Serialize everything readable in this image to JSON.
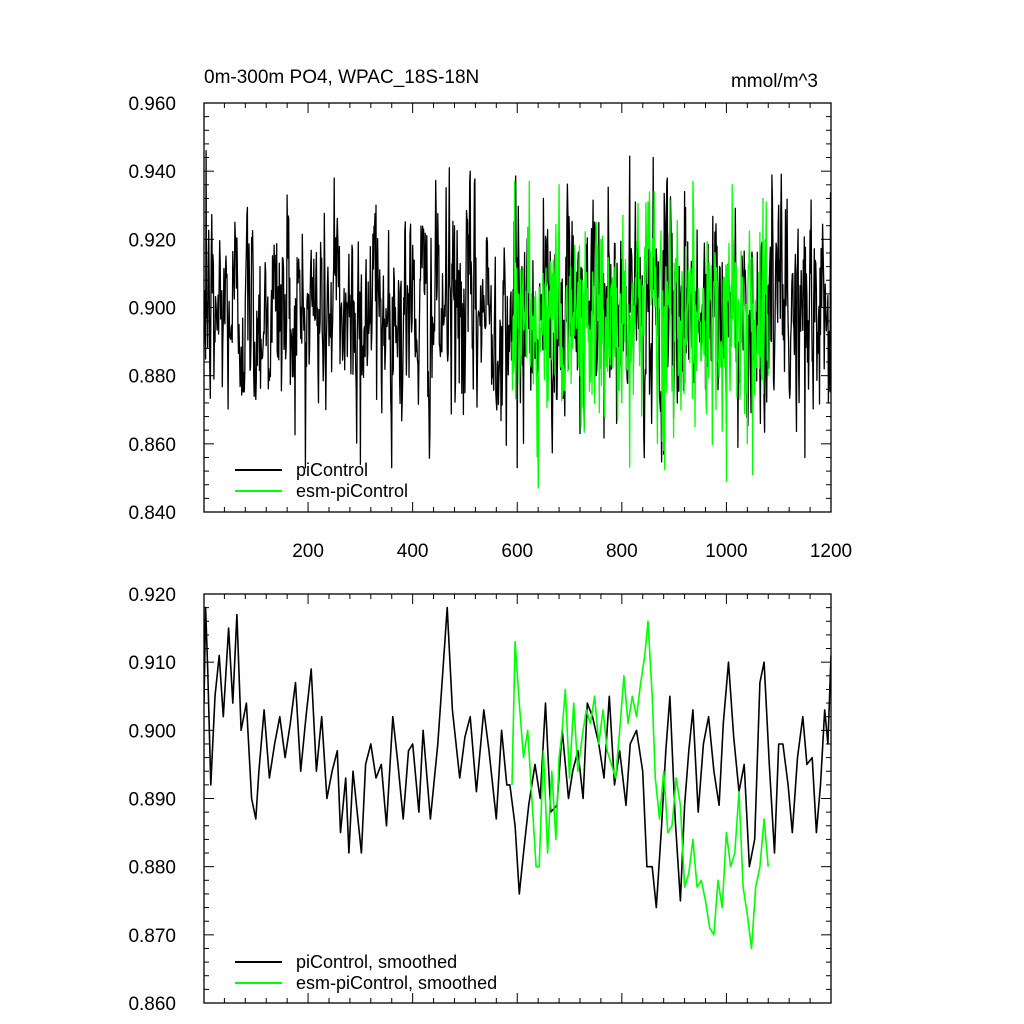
{
  "chart_data": [
    {
      "type": "line",
      "title": "0m-300m PO4, WPAC_18S-18N",
      "units": "mmol/m^3",
      "xlim": [
        1,
        1200
      ],
      "ylim": [
        0.84,
        0.96
      ],
      "xticks": [
        200,
        400,
        600,
        800,
        1000,
        1200
      ],
      "xtick_labels": [
        "200",
        "400",
        "600",
        "800",
        "1000",
        "1200"
      ],
      "yticks": [
        0.84,
        0.86,
        0.88,
        0.9,
        0.92,
        0.94,
        0.96
      ],
      "ytick_labels": [
        "0.840",
        "0.860",
        "0.880",
        "0.900",
        "0.920",
        "0.940",
        "0.960"
      ],
      "legend_placement": "bottom-left",
      "series": [
        {
          "name": "piControl",
          "color": "#000000",
          "x_range": [
            1,
            1200
          ],
          "x_step": 1,
          "approximate_mean": 0.899,
          "approximate_range": [
            0.853,
            0.946
          ],
          "representative_points": [
            [
              1,
              0.889
            ],
            [
              5,
              0.946
            ],
            [
              20,
              0.879
            ],
            [
              60,
              0.925
            ],
            [
              100,
              0.873
            ],
            [
              160,
              0.933
            ],
            [
              220,
              0.872
            ],
            [
              250,
              0.938
            ],
            [
              300,
              0.854
            ],
            [
              330,
              0.93
            ],
            [
              380,
              0.872
            ],
            [
              470,
              0.941
            ],
            [
              500,
              0.875
            ],
            [
              510,
              0.94
            ],
            [
              560,
              0.872
            ],
            [
              600,
              0.853
            ],
            [
              650,
              0.932
            ],
            [
              720,
              0.863
            ],
            [
              790,
              0.866
            ],
            [
              860,
              0.944
            ],
            [
              880,
              0.857
            ],
            [
              920,
              0.934
            ],
            [
              960,
              0.876
            ],
            [
              1000,
              0.866
            ],
            [
              1050,
              0.913
            ],
            [
              1100,
              0.93
            ],
            [
              1150,
              0.856
            ],
            [
              1195,
              0.872
            ],
            [
              1200,
              0.93
            ]
          ]
        },
        {
          "name": "esm-piControl",
          "color": "#00ff00",
          "x_range": [
            590,
            1080
          ],
          "x_step": 1,
          "approximate_mean": 0.895,
          "approximate_range": [
            0.847,
            0.937
          ],
          "representative_points": [
            [
              590,
              0.89
            ],
            [
              595,
              0.937
            ],
            [
              640,
              0.847
            ],
            [
              680,
              0.936
            ],
            [
              720,
              0.88
            ],
            [
              760,
              0.92
            ],
            [
              800,
              0.872
            ],
            [
              850,
              0.931
            ],
            [
              880,
              0.858
            ],
            [
              900,
              0.913
            ],
            [
              940,
              0.865
            ],
            [
              980,
              0.87
            ],
            [
              1000,
              0.849
            ],
            [
              1040,
              0.86
            ],
            [
              1050,
              0.851
            ],
            [
              1070,
              0.932
            ],
            [
              1080,
              0.88
            ]
          ]
        }
      ]
    },
    {
      "type": "line",
      "title": "",
      "xlim": [
        1,
        1200
      ],
      "ylim": [
        0.86,
        0.92
      ],
      "xticks": [
        200,
        400,
        600,
        800,
        1000,
        1200
      ],
      "yticks": [
        0.86,
        0.87,
        0.88,
        0.89,
        0.9,
        0.91,
        0.92
      ],
      "ytick_labels": [
        "0.860",
        "0.870",
        "0.880",
        "0.890",
        "0.900",
        "0.910",
        "0.920"
      ],
      "legend_placement": "bottom-left",
      "series": [
        {
          "name": "piControl, smoothed",
          "color": "#000000",
          "points": [
            [
              1,
              0.904
            ],
            [
              4,
              0.918
            ],
            [
              8,
              0.909
            ],
            [
              14,
              0.892
            ],
            [
              22,
              0.905
            ],
            [
              30,
              0.911
            ],
            [
              38,
              0.902
            ],
            [
              48,
              0.915
            ],
            [
              56,
              0.904
            ],
            [
              64,
              0.917
            ],
            [
              72,
              0.9
            ],
            [
              82,
              0.904
            ],
            [
              92,
              0.89
            ],
            [
              100,
              0.887
            ],
            [
              106,
              0.894
            ],
            [
              116,
              0.903
            ],
            [
              126,
              0.893
            ],
            [
              136,
              0.898
            ],
            [
              146,
              0.902
            ],
            [
              156,
              0.896
            ],
            [
              166,
              0.901
            ],
            [
              176,
              0.907
            ],
            [
              186,
              0.894
            ],
            [
              196,
              0.902
            ],
            [
              206,
              0.909
            ],
            [
              216,
              0.894
            ],
            [
              226,
              0.902
            ],
            [
              236,
              0.89
            ],
            [
              246,
              0.894
            ],
            [
              256,
              0.897
            ],
            [
              262,
              0.885
            ],
            [
              272,
              0.893
            ],
            [
              278,
              0.882
            ],
            [
              286,
              0.894
            ],
            [
              294,
              0.888
            ],
            [
              302,
              0.882
            ],
            [
              310,
              0.895
            ],
            [
              320,
              0.898
            ],
            [
              330,
              0.893
            ],
            [
              340,
              0.895
            ],
            [
              350,
              0.886
            ],
            [
              362,
              0.902
            ],
            [
              372,
              0.895
            ],
            [
              382,
              0.887
            ],
            [
              392,
              0.897
            ],
            [
              400,
              0.898
            ],
            [
              412,
              0.888
            ],
            [
              420,
              0.9
            ],
            [
              434,
              0.887
            ],
            [
              448,
              0.898
            ],
            [
              458,
              0.909
            ],
            [
              466,
              0.918
            ],
            [
              476,
              0.903
            ],
            [
              490,
              0.893
            ],
            [
              500,
              0.899
            ],
            [
              510,
              0.902
            ],
            [
              522,
              0.891
            ],
            [
              536,
              0.903
            ],
            [
              546,
              0.897
            ],
            [
              560,
              0.887
            ],
            [
              570,
              0.9
            ],
            [
              580,
              0.892
            ],
            [
              586,
              0.892
            ],
            [
              596,
              0.886
            ],
            [
              604,
              0.876
            ],
            [
              612,
              0.882
            ],
            [
              622,
              0.889
            ],
            [
              634,
              0.895
            ],
            [
              644,
              0.89
            ],
            [
              654,
              0.904
            ],
            [
              664,
              0.888
            ],
            [
              676,
              0.889
            ],
            [
              686,
              0.9
            ],
            [
              698,
              0.89
            ],
            [
              706,
              0.894
            ],
            [
              716,
              0.897
            ],
            [
              726,
              0.89
            ],
            [
              734,
              0.904
            ],
            [
              744,
              0.902
            ],
            [
              756,
              0.898
            ],
            [
              766,
              0.893
            ],
            [
              776,
              0.905
            ],
            [
              786,
              0.892
            ],
            [
              796,
              0.897
            ],
            [
              808,
              0.889
            ],
            [
              816,
              0.898
            ],
            [
              828,
              0.9
            ],
            [
              840,
              0.894
            ],
            [
              848,
              0.88
            ],
            [
              858,
              0.88
            ],
            [
              866,
              0.874
            ],
            [
              876,
              0.886
            ],
            [
              884,
              0.897
            ],
            [
              892,
              0.905
            ],
            [
              902,
              0.887
            ],
            [
              912,
              0.875
            ],
            [
              920,
              0.889
            ],
            [
              928,
              0.897
            ],
            [
              936,
              0.903
            ],
            [
              946,
              0.888
            ],
            [
              956,
              0.898
            ],
            [
              966,
              0.902
            ],
            [
              976,
              0.894
            ],
            [
              986,
              0.889
            ],
            [
              994,
              0.901
            ],
            [
              1004,
              0.91
            ],
            [
              1014,
              0.899
            ],
            [
              1024,
              0.891
            ],
            [
              1034,
              0.895
            ],
            [
              1044,
              0.88
            ],
            [
              1054,
              0.884
            ],
            [
              1064,
              0.907
            ],
            [
              1072,
              0.91
            ],
            [
              1082,
              0.895
            ],
            [
              1092,
              0.882
            ],
            [
              1100,
              0.898
            ],
            [
              1108,
              0.898
            ],
            [
              1118,
              0.892
            ],
            [
              1126,
              0.885
            ],
            [
              1136,
              0.896
            ],
            [
              1146,
              0.902
            ],
            [
              1154,
              0.895
            ],
            [
              1164,
              0.896
            ],
            [
              1172,
              0.885
            ],
            [
              1180,
              0.892
            ],
            [
              1188,
              0.903
            ],
            [
              1194,
              0.898
            ],
            [
              1200,
              0.911
            ]
          ]
        },
        {
          "name": "esm-piControl, smoothed",
          "color": "#00ff00",
          "points": [
            [
              590,
              0.892
            ],
            [
              596,
              0.913
            ],
            [
              604,
              0.904
            ],
            [
              612,
              0.896
            ],
            [
              620,
              0.9
            ],
            [
              628,
              0.89
            ],
            [
              636,
              0.88
            ],
            [
              642,
              0.88
            ],
            [
              650,
              0.897
            ],
            [
              658,
              0.882
            ],
            [
              666,
              0.894
            ],
            [
              674,
              0.884
            ],
            [
              680,
              0.896
            ],
            [
              686,
              0.9
            ],
            [
              692,
              0.906
            ],
            [
              700,
              0.893
            ],
            [
              708,
              0.904
            ],
            [
              716,
              0.894
            ],
            [
              724,
              0.899
            ],
            [
              732,
              0.903
            ],
            [
              740,
              0.901
            ],
            [
              748,
              0.905
            ],
            [
              756,
              0.898
            ],
            [
              764,
              0.903
            ],
            [
              772,
              0.897
            ],
            [
              780,
              0.895
            ],
            [
              788,
              0.893
            ],
            [
              796,
              0.9
            ],
            [
              804,
              0.908
            ],
            [
              812,
              0.901
            ],
            [
              820,
              0.905
            ],
            [
              828,
              0.902
            ],
            [
              836,
              0.907
            ],
            [
              844,
              0.911
            ],
            [
              850,
              0.916
            ],
            [
              858,
              0.905
            ],
            [
              864,
              0.893
            ],
            [
              872,
              0.887
            ],
            [
              880,
              0.894
            ],
            [
              888,
              0.885
            ],
            [
              896,
              0.886
            ],
            [
              904,
              0.893
            ],
            [
              912,
              0.889
            ],
            [
              920,
              0.877
            ],
            [
              928,
              0.879
            ],
            [
              936,
              0.884
            ],
            [
              944,
              0.877
            ],
            [
              952,
              0.878
            ],
            [
              960,
              0.875
            ],
            [
              968,
              0.871
            ],
            [
              976,
              0.87
            ],
            [
              984,
              0.878
            ],
            [
              992,
              0.874
            ],
            [
              1000,
              0.885
            ],
            [
              1008,
              0.88
            ],
            [
              1016,
              0.882
            ],
            [
              1024,
              0.891
            ],
            [
              1032,
              0.877
            ],
            [
              1040,
              0.873
            ],
            [
              1048,
              0.868
            ],
            [
              1056,
              0.877
            ],
            [
              1064,
              0.88
            ],
            [
              1072,
              0.887
            ],
            [
              1080,
              0.88
            ]
          ]
        }
      ]
    }
  ]
}
